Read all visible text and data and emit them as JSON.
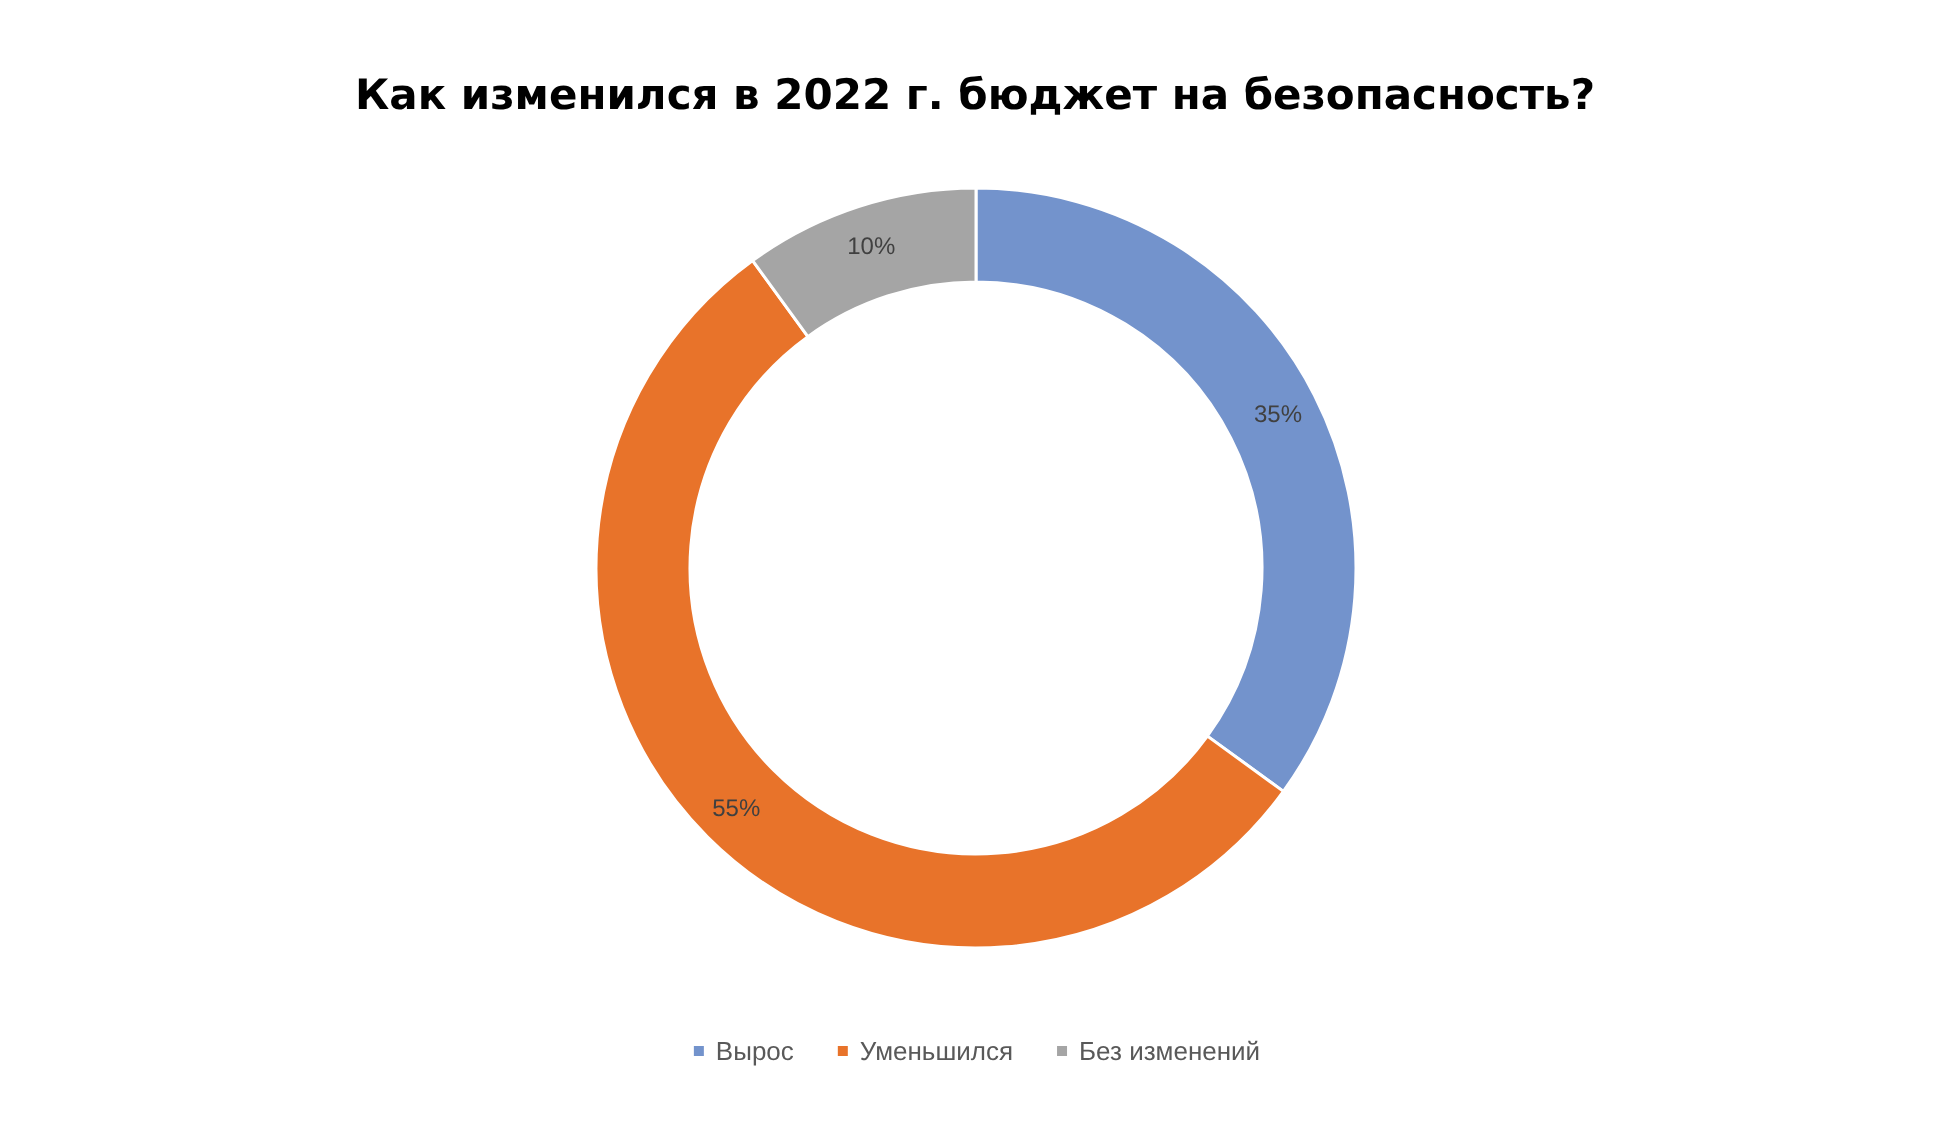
{
  "chart_data": {
    "type": "donut",
    "title": "Как изменился в 2022 г. бюджет на безопасность?",
    "categories": [
      "Вырос",
      "Уменьшился",
      "Без изменений"
    ],
    "values": [
      35,
      55,
      10
    ],
    "colors": [
      "#7393cc",
      "#e8732a",
      "#a5a5a5"
    ],
    "value_labels": [
      "35%",
      "55%",
      "10%"
    ],
    "legend": "bottom"
  }
}
